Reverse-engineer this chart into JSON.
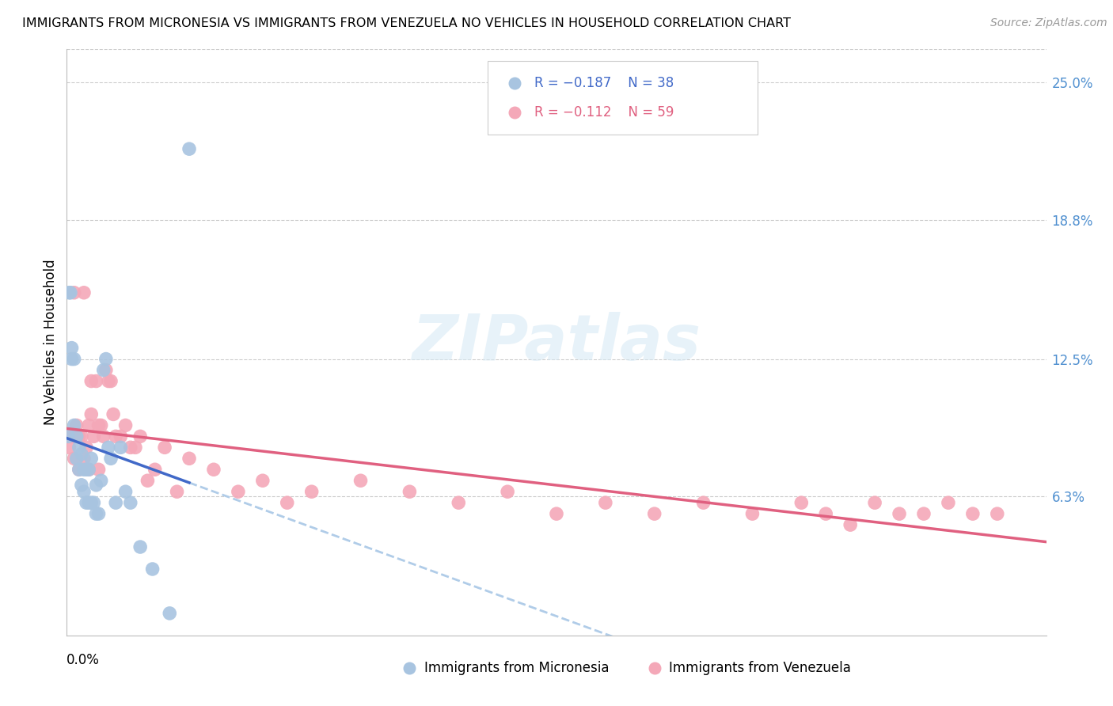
{
  "title": "IMMIGRANTS FROM MICRONESIA VS IMMIGRANTS FROM VENEZUELA NO VEHICLES IN HOUSEHOLD CORRELATION CHART",
  "source": "Source: ZipAtlas.com",
  "ylabel": "No Vehicles in Household",
  "xmin": 0.0,
  "xmax": 0.4,
  "ymin": 0.0,
  "ymax": 0.265,
  "yticks": [
    0.063,
    0.125,
    0.188,
    0.25
  ],
  "ytick_labels": [
    "6.3%",
    "12.5%",
    "18.8%",
    "25.0%"
  ],
  "legend_blue_R": "-0.187",
  "legend_blue_N": "38",
  "legend_pink_R": "-0.112",
  "legend_pink_N": "59",
  "legend_blue_label": "Immigrants from Micronesia",
  "legend_pink_label": "Immigrants from Venezuela",
  "blue_color": "#a8c4e0",
  "pink_color": "#f4a8b8",
  "blue_line_color": "#4169c8",
  "pink_line_color": "#e06080",
  "blue_dashed_color": "#b0cce8",
  "watermark_text": "ZIPatlas",
  "micronesia_x": [
    0.0005,
    0.001,
    0.0015,
    0.002,
    0.002,
    0.003,
    0.003,
    0.004,
    0.004,
    0.005,
    0.005,
    0.006,
    0.006,
    0.007,
    0.007,
    0.008,
    0.008,
    0.009,
    0.009,
    0.01,
    0.01,
    0.011,
    0.012,
    0.012,
    0.013,
    0.014,
    0.015,
    0.016,
    0.017,
    0.018,
    0.02,
    0.022,
    0.024,
    0.026,
    0.03,
    0.035,
    0.042,
    0.05
  ],
  "micronesia_y": [
    0.09,
    0.155,
    0.155,
    0.125,
    0.13,
    0.125,
    0.095,
    0.09,
    0.08,
    0.085,
    0.075,
    0.082,
    0.068,
    0.075,
    0.065,
    0.075,
    0.06,
    0.075,
    0.06,
    0.08,
    0.06,
    0.06,
    0.068,
    0.055,
    0.055,
    0.07,
    0.12,
    0.125,
    0.085,
    0.08,
    0.06,
    0.085,
    0.065,
    0.06,
    0.04,
    0.03,
    0.01,
    0.22
  ],
  "venezuela_x": [
    0.001,
    0.002,
    0.003,
    0.003,
    0.004,
    0.005,
    0.005,
    0.006,
    0.007,
    0.007,
    0.008,
    0.009,
    0.009,
    0.01,
    0.01,
    0.011,
    0.012,
    0.013,
    0.013,
    0.014,
    0.015,
    0.016,
    0.017,
    0.018,
    0.019,
    0.02,
    0.022,
    0.024,
    0.026,
    0.028,
    0.03,
    0.033,
    0.036,
    0.04,
    0.045,
    0.05,
    0.06,
    0.07,
    0.08,
    0.09,
    0.1,
    0.12,
    0.14,
    0.16,
    0.18,
    0.2,
    0.22,
    0.24,
    0.26,
    0.28,
    0.3,
    0.31,
    0.32,
    0.33,
    0.34,
    0.35,
    0.36,
    0.37,
    0.38
  ],
  "venezuela_y": [
    0.085,
    0.09,
    0.08,
    0.155,
    0.095,
    0.09,
    0.075,
    0.09,
    0.08,
    0.155,
    0.085,
    0.095,
    0.075,
    0.1,
    0.115,
    0.09,
    0.115,
    0.095,
    0.075,
    0.095,
    0.09,
    0.12,
    0.115,
    0.115,
    0.1,
    0.09,
    0.09,
    0.095,
    0.085,
    0.085,
    0.09,
    0.07,
    0.075,
    0.085,
    0.065,
    0.08,
    0.075,
    0.065,
    0.07,
    0.06,
    0.065,
    0.07,
    0.065,
    0.06,
    0.065,
    0.055,
    0.06,
    0.055,
    0.06,
    0.055,
    0.06,
    0.055,
    0.05,
    0.06,
    0.055,
    0.055,
    0.06,
    0.055,
    0.055
  ]
}
